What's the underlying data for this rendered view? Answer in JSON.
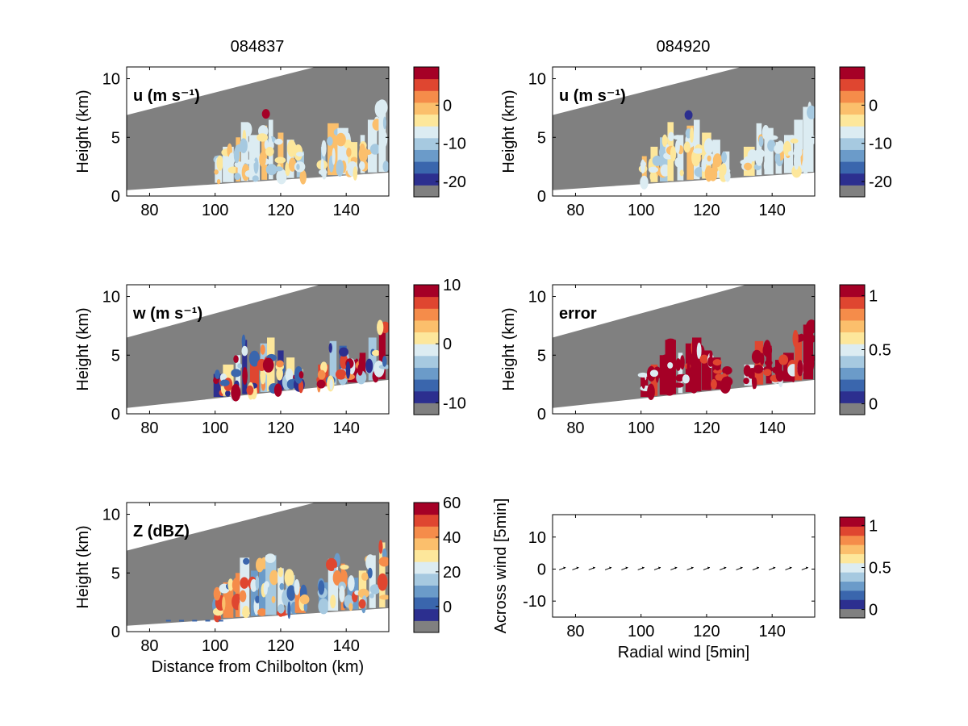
{
  "colorbar_colors": [
    "#808080",
    "#2c2f8f",
    "#3a66ad",
    "#6b9bc9",
    "#a6c9e0",
    "#dcecf2",
    "#fde79b",
    "#fbbf6c",
    "#f58c4a",
    "#df4630",
    "#a50026"
  ],
  "gray": "#808080",
  "column_titles": [
    "084837",
    "084920"
  ],
  "chart_data": [
    {
      "type": "heatmap",
      "title": "084837",
      "panel_label": "u (m s⁻¹)",
      "ylabel": "Height (km)",
      "xticks": [
        "80",
        "100",
        "120",
        "140"
      ],
      "yticks": [
        "0",
        "5",
        "10"
      ],
      "xlim": [
        73,
        153
      ],
      "ylim": [
        0,
        11
      ],
      "colorbar": {
        "ticks": [
          {
            "label": "0",
            "value": 0
          },
          {
            "label": "-10",
            "value": -10
          },
          {
            "label": "-20",
            "value": -20
          }
        ],
        "range": [
          -24,
          10
        ]
      }
    },
    {
      "type": "heatmap",
      "title": "084920",
      "panel_label": "u (m s⁻¹)",
      "ylabel": "Height (km)",
      "xticks": [
        "80",
        "100",
        "120",
        "140"
      ],
      "yticks": [
        "0",
        "5",
        "10"
      ],
      "xlim": [
        73,
        153
      ],
      "ylim": [
        0,
        11
      ],
      "colorbar": {
        "ticks": [
          {
            "label": "0",
            "value": 0
          },
          {
            "label": "-10",
            "value": -10
          },
          {
            "label": "-20",
            "value": -20
          }
        ],
        "range": [
          -24,
          10
        ]
      }
    },
    {
      "type": "heatmap",
      "panel_label": "w (m s⁻¹)",
      "ylabel": "Height (km)",
      "xticks": [
        "80",
        "100",
        "120",
        "140"
      ],
      "yticks": [
        "0",
        "5",
        "10"
      ],
      "xlim": [
        73,
        153
      ],
      "ylim": [
        0,
        11
      ],
      "colorbar": {
        "ticks": [
          {
            "label": "10",
            "value": 10
          },
          {
            "label": "0",
            "value": 0
          },
          {
            "label": "-10",
            "value": -10
          }
        ],
        "range": [
          -12,
          10
        ]
      }
    },
    {
      "type": "heatmap",
      "panel_label": "error",
      "ylabel": "Height (km)",
      "xticks": [
        "80",
        "100",
        "120",
        "140"
      ],
      "yticks": [
        "0",
        "5",
        "10"
      ],
      "xlim": [
        73,
        153
      ],
      "ylim": [
        0,
        11
      ],
      "colorbar": {
        "ticks": [
          {
            "label": "1",
            "value": 1
          },
          {
            "label": "0.5",
            "value": 0.5
          },
          {
            "label": "0",
            "value": 0
          }
        ],
        "range": [
          -0.1,
          1.1
        ]
      }
    },
    {
      "type": "heatmap",
      "panel_label": "Z (dBZ)",
      "ylabel": "Height (km)",
      "xlabel": "Distance from Chilbolton (km)",
      "xticks": [
        "80",
        "100",
        "120",
        "140"
      ],
      "yticks": [
        "0",
        "5",
        "10"
      ],
      "xlim": [
        73,
        153
      ],
      "ylim": [
        0,
        11
      ],
      "colorbar": {
        "ticks": [
          {
            "label": "60",
            "value": 60
          },
          {
            "label": "40",
            "value": 40
          },
          {
            "label": "20",
            "value": 20
          },
          {
            "label": "0",
            "value": 0
          }
        ],
        "range": [
          -15,
          60
        ]
      }
    },
    {
      "type": "scatter",
      "ylabel": "Across wind [5min]",
      "xlabel": "Radial wind [5min]",
      "xticks": [
        "80",
        "100",
        "120",
        "140"
      ],
      "yticks": [
        "10",
        "0",
        "-10"
      ],
      "xlim": [
        73,
        153
      ],
      "ylim": [
        -15,
        17
      ],
      "x": [
        76,
        80,
        85,
        90,
        95,
        100,
        105,
        110,
        115,
        120,
        125,
        130,
        135,
        140,
        145,
        150
      ],
      "y": [
        0,
        0,
        0,
        0,
        0,
        0,
        0,
        0,
        0,
        0,
        0,
        0,
        0,
        0,
        0,
        0
      ],
      "colorbar": {
        "ticks": [
          {
            "label": "1",
            "value": 1
          },
          {
            "label": "0.5",
            "value": 0.5
          },
          {
            "label": "0",
            "value": 0
          }
        ],
        "range": [
          -0.1,
          1.1
        ]
      }
    }
  ]
}
